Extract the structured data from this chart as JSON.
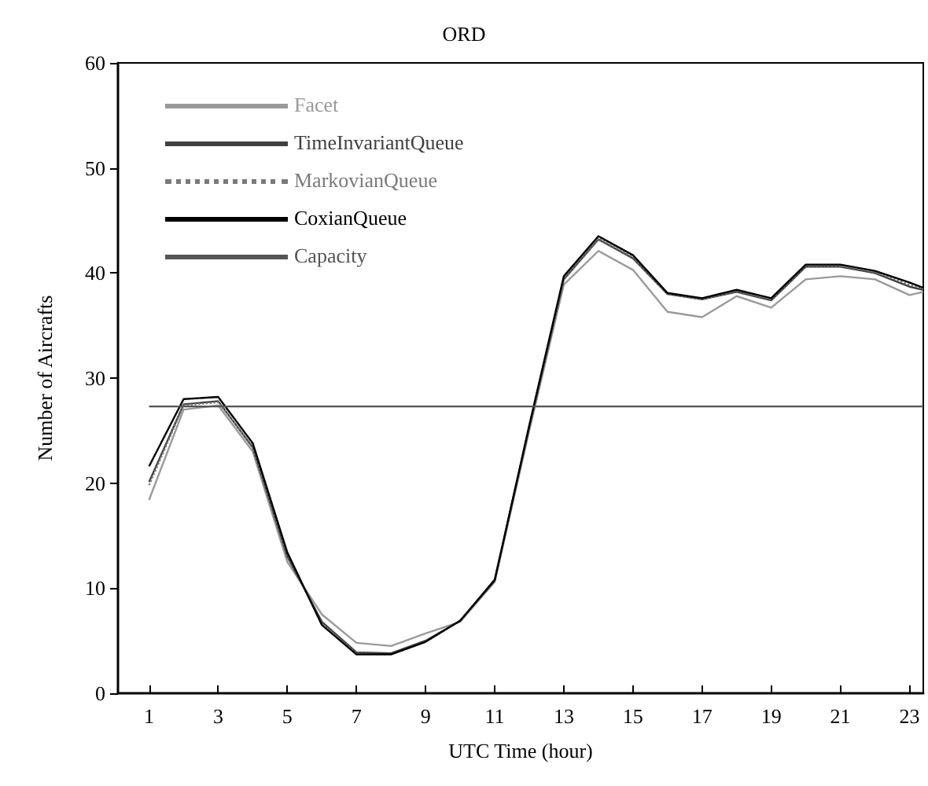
{
  "chart_data": {
    "type": "line",
    "title": "ORD",
    "xlabel": "UTC Time (hour)",
    "ylabel": "Number of Aircrafts",
    "x": [
      1,
      2,
      3,
      4,
      5,
      6,
      7,
      8,
      9,
      10,
      11,
      12,
      13,
      14,
      15,
      16,
      17,
      18,
      19,
      20,
      21,
      22,
      23,
      23.4
    ],
    "xlim": [
      0.1,
      23.4
    ],
    "xticks": [
      1,
      3,
      5,
      7,
      9,
      11,
      13,
      15,
      17,
      19,
      21,
      23
    ],
    "ylim": [
      0,
      60
    ],
    "yticks": [
      0,
      10,
      20,
      30,
      40,
      50,
      60
    ],
    "grid": false,
    "legend": "top left",
    "marker": "none",
    "series": [
      {
        "name": "Facet",
        "color": "#9a9a9a",
        "line_style": "solid",
        "values": [
          18.4,
          27,
          27.4,
          23,
          12.5,
          7.5,
          4.8,
          4.5,
          5.7,
          6.8,
          10.6,
          25,
          38.9,
          42.1,
          40.3,
          36.3,
          35.8,
          37.8,
          36.7,
          39.4,
          39.7,
          39.4,
          37.9,
          38.2
        ]
      },
      {
        "name": "TimeInvariantQueue",
        "color": "#404040",
        "line_style": "solid",
        "values": [
          20.1,
          27.5,
          27.8,
          23.4,
          13,
          6.8,
          3.9,
          3.8,
          5,
          6.9,
          10.7,
          25.3,
          39.4,
          43.2,
          41.4,
          38,
          37.5,
          38.2,
          37.4,
          40.6,
          40.6,
          40,
          38.7,
          38.4
        ]
      },
      {
        "name": "MarkovianQueue",
        "color": "#7a7a7a",
        "line_style": "dotted",
        "values": [
          19.8,
          27.4,
          27.7,
          23.5,
          13.2,
          6.6,
          3.8,
          3.7,
          4.9,
          6.9,
          10.8,
          25.4,
          39.5,
          43.3,
          41.5,
          38,
          37.5,
          38.3,
          37.5,
          40.7,
          40.7,
          40.1,
          38.9,
          38.5
        ]
      },
      {
        "name": "CoxianQueue",
        "color": "#000000",
        "line_style": "solid",
        "values": [
          21.6,
          28,
          28.2,
          23.8,
          13.4,
          6.5,
          3.7,
          3.7,
          4.9,
          6.9,
          10.8,
          25.5,
          39.7,
          43.5,
          41.7,
          38.1,
          37.6,
          38.4,
          37.6,
          40.8,
          40.8,
          40.2,
          39.1,
          38.6
        ]
      },
      {
        "name": "Capacity",
        "color": "#555555",
        "line_style": "solid",
        "values": [
          27.3,
          27.3,
          27.3,
          27.3,
          27.3,
          27.3,
          27.3,
          27.3,
          27.3,
          27.3,
          27.3,
          27.3,
          27.3,
          27.3,
          27.3,
          27.3,
          27.3,
          27.3,
          27.3,
          27.3,
          27.3,
          27.3,
          27.3,
          27.3
        ]
      }
    ]
  }
}
